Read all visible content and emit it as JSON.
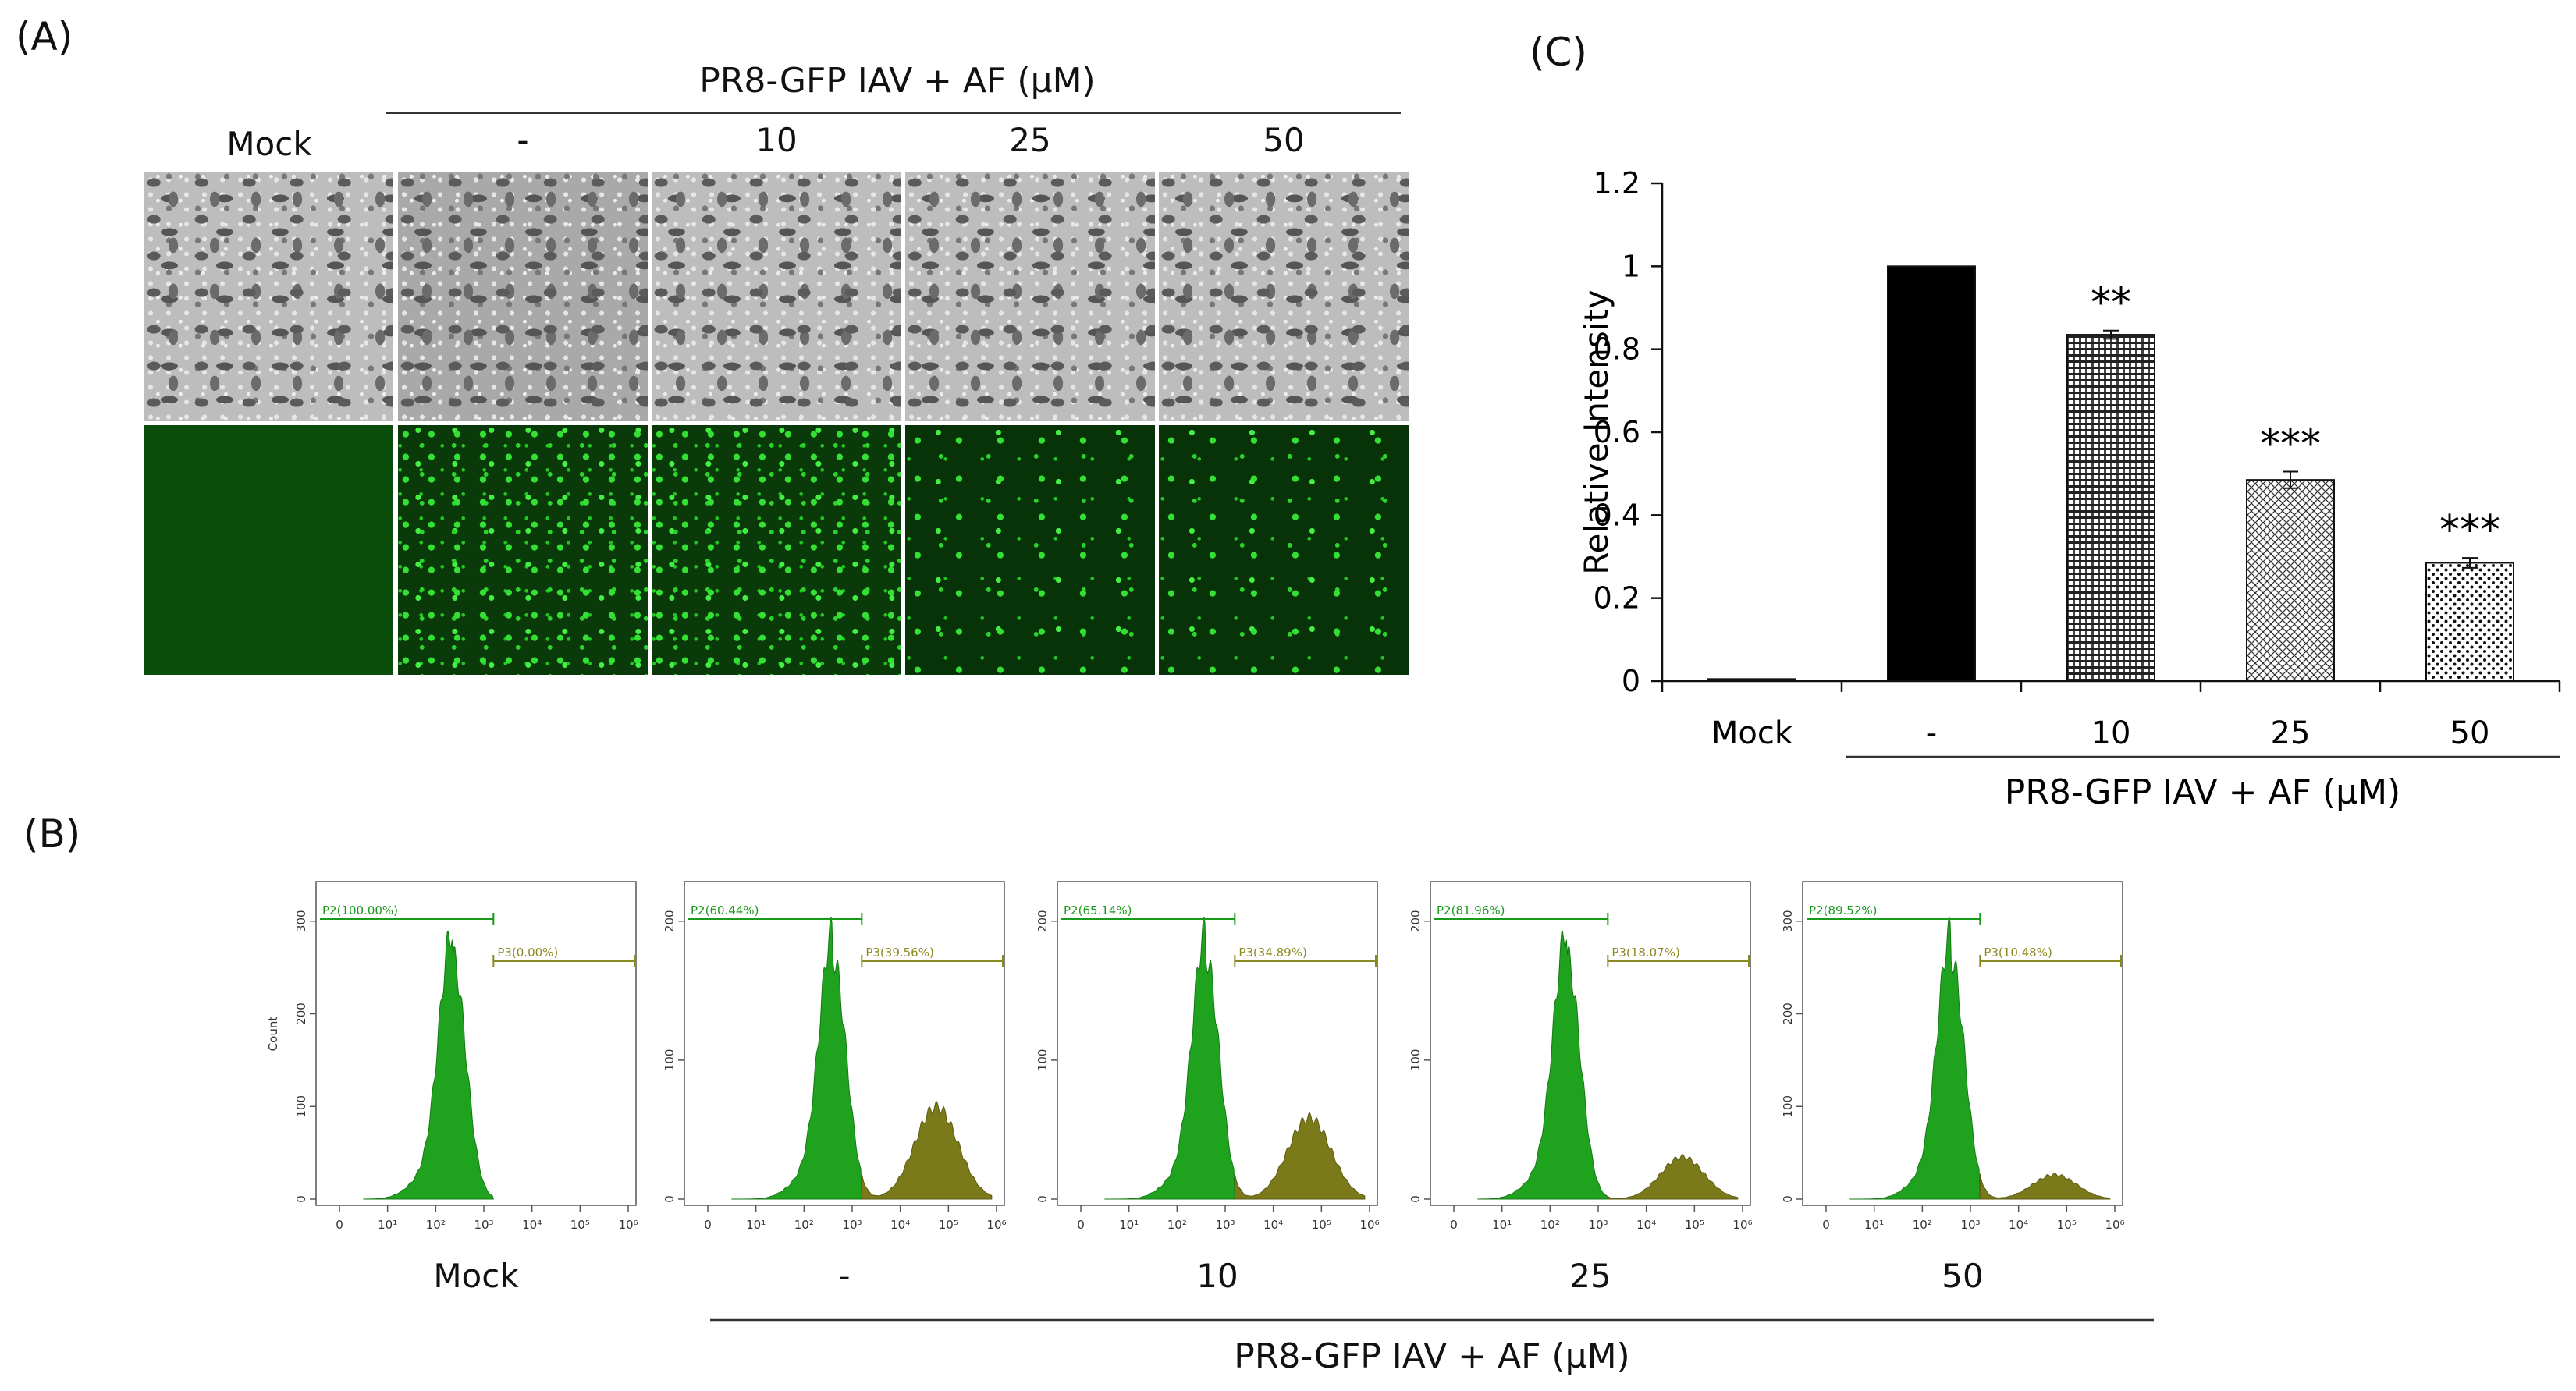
{
  "panels": {
    "a_letter": "(A)",
    "b_letter": "(B)",
    "c_letter": "(C)"
  },
  "panel_a": {
    "group_header": "PR8-GFP IAV + AF (μM)",
    "columns": [
      "Mock",
      "-",
      "10",
      "25",
      "50"
    ]
  },
  "chart_data": [
    {
      "type": "bar",
      "ylabel": "Relative Intensity",
      "ylim": [
        0,
        1.2
      ],
      "yticks": [
        "0",
        "0.2",
        "0.4",
        "0.6",
        "0.8",
        "1",
        "1.2"
      ],
      "categories": [
        "Mock",
        "-",
        "10",
        "25",
        "50"
      ],
      "values": [
        0.005,
        1.0,
        0.835,
        0.485,
        0.285
      ],
      "errors": [
        0,
        0,
        0.01,
        0.02,
        0.012
      ],
      "significance": [
        "",
        "",
        "**",
        "***",
        "***"
      ],
      "group_label": "PR8-GFP IAV + AF (μM)",
      "grid": false
    },
    {
      "type": "histogram",
      "ylabel": "Count",
      "xaxis": "log",
      "xticks": [
        "0",
        "10¹",
        "10²",
        "10³",
        "10⁴",
        "10⁵",
        "10⁶"
      ],
      "group_label": "PR8-GFP IAV + AF (μM)",
      "plots": [
        {
          "label": "Mock",
          "ymax": 300,
          "yticks": [
            "0",
            "100",
            "200",
            "300"
          ],
          "p2": "P2(100.00%)",
          "p3": "P3(0.00%)",
          "p3_fraction": 0.0
        },
        {
          "label": "-",
          "ymax": 200,
          "yticks": [
            "0",
            "100",
            "200"
          ],
          "p2": "P2(60.44%)",
          "p3": "P3(39.56%)",
          "p3_fraction": 0.3956
        },
        {
          "label": "10",
          "ymax": 200,
          "yticks": [
            "0",
            "100",
            "200"
          ],
          "p2": "P2(65.14%)",
          "p3": "P3(34.89%)",
          "p3_fraction": 0.3489
        },
        {
          "label": "25",
          "ymax": 200,
          "yticks": [
            "0",
            "100",
            "200"
          ],
          "p2": "P2(81.96%)",
          "p3": "P3(18.07%)",
          "p3_fraction": 0.1807
        },
        {
          "label": "50",
          "ymax": 300,
          "yticks": [
            "0",
            "100",
            "200",
            "300"
          ],
          "p2": "P2(89.52%)",
          "p3": "P3(10.48%)",
          "p3_fraction": 0.1048
        }
      ]
    }
  ],
  "colors": {
    "green": "#1fa31f",
    "olive": "#7a7a1a",
    "p2_text": "#1a9a1a",
    "p3_text": "#8a8a20"
  }
}
